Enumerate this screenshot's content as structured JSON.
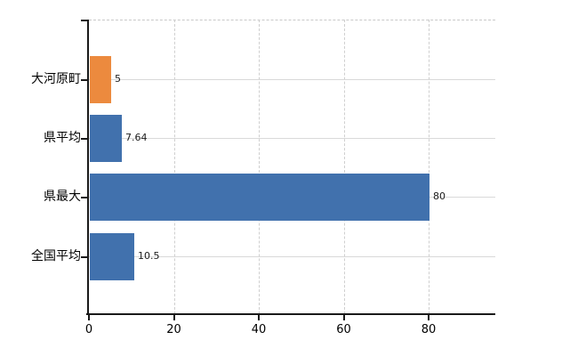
{
  "chart_data": {
    "type": "bar",
    "orientation": "horizontal",
    "title": "",
    "xlabel": "",
    "ylabel": "",
    "legend": "none",
    "categories": [
      "大河原町",
      "県平均",
      "県最大",
      "全国平均"
    ],
    "values": [
      5,
      7.64,
      80,
      10.5
    ],
    "value_labels": [
      "5",
      "7.64",
      "80",
      "10.5"
    ],
    "bar_colors": [
      "#EC8A3E",
      "#4171AD",
      "#4171AD",
      "#4171AD"
    ],
    "x_ticks": [
      0,
      20,
      40,
      60,
      80
    ],
    "x_tick_labels": [
      "0",
      "20",
      "40",
      "60",
      "80"
    ],
    "xlim": [
      0,
      95.7
    ],
    "grid": {
      "vertical_style": "dashed",
      "horizontal_style": "solid",
      "top_border_style": "dashed"
    },
    "colors": {
      "background": "#FFFFFF",
      "axis": "#1A1A1A",
      "h_gridline": "#D9D9D9",
      "v_gridline": "#CFCFCF",
      "top_border": "#C9C9C9",
      "category_text": "#000000",
      "tick_text": "#000000",
      "value_text": "#1A1A1A"
    }
  }
}
